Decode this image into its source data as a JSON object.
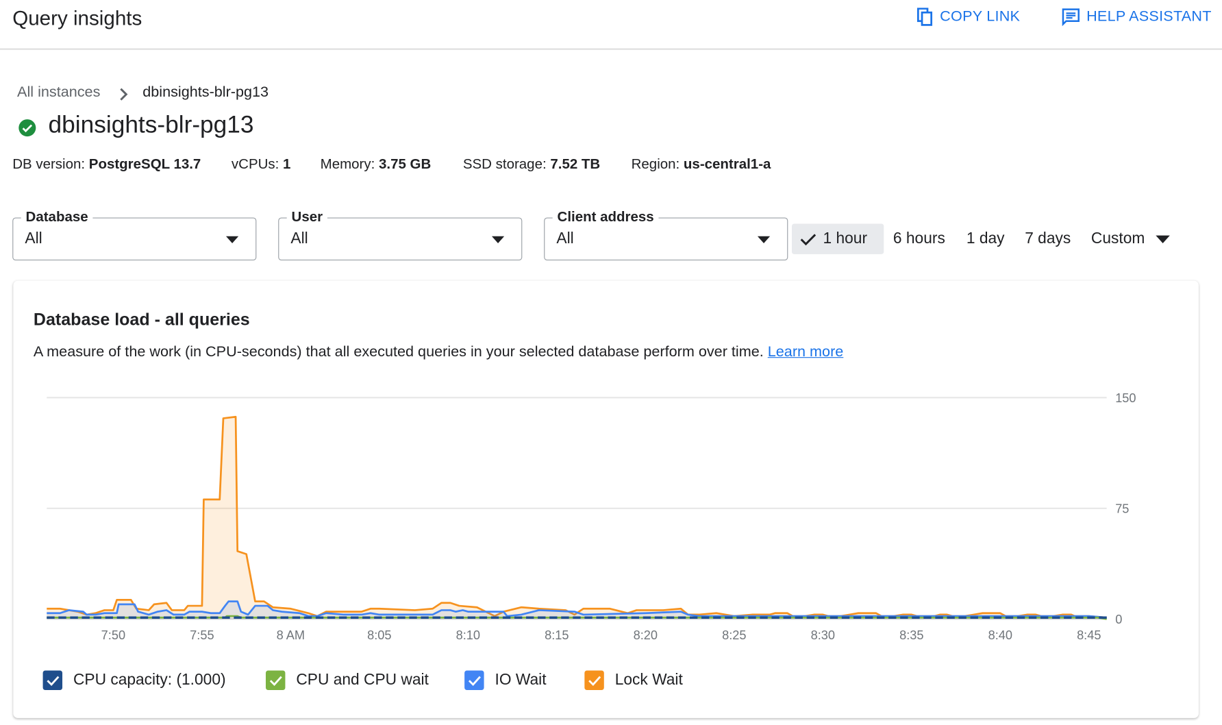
{
  "header": {
    "title": "Query insights",
    "copy_link": "COPY LINK",
    "help_assistant": "HELP ASSISTANT"
  },
  "breadcrumb": {
    "root": "All instances",
    "current": "dbinsights-blr-pg13"
  },
  "instance": {
    "name": "dbinsights-blr-pg13",
    "status": "healthy",
    "info": [
      {
        "label": "DB version:",
        "value": "PostgreSQL 13.7"
      },
      {
        "label": "vCPUs:",
        "value": "1"
      },
      {
        "label": "Memory:",
        "value": "3.75 GB"
      },
      {
        "label": "SSD storage:",
        "value": "7.52 TB"
      },
      {
        "label": "Region:",
        "value": "us-central1-a"
      }
    ]
  },
  "filters": [
    {
      "label": "Database",
      "value": "All"
    },
    {
      "label": "User",
      "value": "All"
    },
    {
      "label": "Client address",
      "value": "All"
    }
  ],
  "time_ranges": {
    "options": [
      "1 hour",
      "6 hours",
      "1 day",
      "7 days",
      "Custom"
    ],
    "selected": "1 hour"
  },
  "card": {
    "title": "Database load - all queries",
    "description": "A measure of the work (in CPU-seconds) that all executed queries in your selected database perform over time.",
    "learn_more": "Learn more"
  },
  "colors": {
    "accent": "#1a73e8",
    "cpu_capacity": "#1f4e8c",
    "cpu_wait": "#7cb342",
    "io_wait": "#4285f4",
    "lock_wait": "#f6921e",
    "success": "#1e8e3e"
  },
  "chart_data": {
    "type": "area",
    "title": "",
    "xlabel": "",
    "ylabel": "",
    "ylim": [
      0,
      150
    ],
    "yticks": [
      "150",
      "75",
      "0"
    ],
    "xlim": [
      "7:46:15",
      "8:46:00"
    ],
    "xticks": [
      "7:50",
      "7:55",
      "8 AM",
      "8:05",
      "8:10",
      "8:15",
      "8:20",
      "8:25",
      "8:30",
      "8:35",
      "8:40",
      "8:45"
    ],
    "grid": true,
    "legend_position": "bottom",
    "series": [
      {
        "name": "CPU capacity: (1.000)",
        "color": "#1f4e8c",
        "style": "dashed",
        "points": [
          [
            "7:46:15",
            1
          ],
          [
            "8:46:00",
            1
          ]
        ]
      },
      {
        "name": "CPU and CPU wait",
        "color": "#7cb342",
        "points": [
          [
            "7:46:15",
            1
          ],
          [
            "7:56:18",
            1
          ],
          [
            "7:56:24",
            2
          ],
          [
            "7:57:00",
            2
          ],
          [
            "7:57:12",
            1
          ],
          [
            "8:45:30",
            1
          ],
          [
            "8:46:00",
            0
          ]
        ]
      },
      {
        "name": "IO Wait",
        "color": "#4285f4",
        "points": [
          [
            "7:46:15",
            4
          ],
          [
            "7:47:00",
            4
          ],
          [
            "7:47:30",
            6
          ],
          [
            "7:48:18",
            5
          ],
          [
            "7:48:30",
            3
          ],
          [
            "7:49:00",
            3
          ],
          [
            "7:49:30",
            4
          ],
          [
            "7:50:12",
            4
          ],
          [
            "7:50:18",
            10
          ],
          [
            "7:51:12",
            10
          ],
          [
            "7:51:24",
            5
          ],
          [
            "7:52:00",
            3
          ],
          [
            "7:52:30",
            5
          ],
          [
            "7:53:00",
            6
          ],
          [
            "7:53:24",
            3
          ],
          [
            "7:54:00",
            3
          ],
          [
            "7:54:18",
            5
          ],
          [
            "7:55:00",
            5
          ],
          [
            "7:55:30",
            4
          ],
          [
            "7:56:00",
            4
          ],
          [
            "7:56:18",
            9
          ],
          [
            "7:56:30",
            12
          ],
          [
            "7:57:00",
            12
          ],
          [
            "7:57:12",
            5
          ],
          [
            "7:57:36",
            3
          ],
          [
            "7:58:00",
            9
          ],
          [
            "7:58:42",
            9
          ],
          [
            "7:59:00",
            6
          ],
          [
            "7:59:30",
            5
          ],
          [
            "8:00:30",
            4
          ],
          [
            "8:01:00",
            2
          ],
          [
            "8:01:30",
            2
          ],
          [
            "8:02:00",
            4
          ],
          [
            "8:03:00",
            3
          ],
          [
            "8:04:00",
            3
          ],
          [
            "8:04:30",
            4
          ],
          [
            "8:05:00",
            3
          ],
          [
            "8:08:00",
            3
          ],
          [
            "8:08:30",
            6
          ],
          [
            "8:09:00",
            6
          ],
          [
            "8:09:18",
            5
          ],
          [
            "8:09:42",
            6
          ],
          [
            "8:10:00",
            5
          ],
          [
            "8:12:00",
            5
          ],
          [
            "8:12:12",
            2
          ],
          [
            "8:13:00",
            3
          ],
          [
            "8:14:00",
            6
          ],
          [
            "8:16:00",
            5
          ],
          [
            "8:16:30",
            3
          ],
          [
            "8:20:00",
            4
          ],
          [
            "8:22:00",
            5
          ],
          [
            "8:22:24",
            3
          ],
          [
            "8:23:00",
            2
          ],
          [
            "8:45:00",
            2
          ],
          [
            "8:46:00",
            1
          ]
        ]
      },
      {
        "name": "Lock Wait",
        "color": "#f6921e",
        "points": [
          [
            "7:46:15",
            7
          ],
          [
            "7:47:00",
            7
          ],
          [
            "7:48:00",
            5
          ],
          [
            "7:48:30",
            3
          ],
          [
            "7:49:00",
            4
          ],
          [
            "7:49:30",
            6
          ],
          [
            "7:50:00",
            6
          ],
          [
            "7:50:12",
            13
          ],
          [
            "7:51:00",
            13
          ],
          [
            "7:51:18",
            7
          ],
          [
            "7:52:00",
            6
          ],
          [
            "7:52:18",
            10
          ],
          [
            "7:53:00",
            11
          ],
          [
            "7:53:18",
            6
          ],
          [
            "7:54:00",
            6
          ],
          [
            "7:54:12",
            9
          ],
          [
            "7:55:00",
            9
          ],
          [
            "7:55:06",
            81
          ],
          [
            "7:56:00",
            81
          ],
          [
            "7:56:12",
            136
          ],
          [
            "7:56:54",
            137
          ],
          [
            "7:57:00",
            46
          ],
          [
            "7:57:30",
            44
          ],
          [
            "7:58:00",
            12
          ],
          [
            "7:58:30",
            12
          ],
          [
            "7:59:00",
            8
          ],
          [
            "8:00:00",
            7
          ],
          [
            "8:01:00",
            4
          ],
          [
            "8:01:30",
            2
          ],
          [
            "8:02:00",
            5
          ],
          [
            "8:04:00",
            5
          ],
          [
            "8:04:30",
            7
          ],
          [
            "8:05:00",
            7
          ],
          [
            "8:07:00",
            6
          ],
          [
            "8:08:00",
            7
          ],
          [
            "8:08:30",
            11
          ],
          [
            "8:09:00",
            11
          ],
          [
            "8:09:30",
            9
          ],
          [
            "8:10:30",
            8
          ],
          [
            "8:11:30",
            2
          ],
          [
            "8:12:00",
            5
          ],
          [
            "8:13:00",
            8
          ],
          [
            "8:14:00",
            7
          ],
          [
            "8:15:30",
            6
          ],
          [
            "8:16:00",
            3
          ],
          [
            "8:16:30",
            7
          ],
          [
            "8:18:00",
            7
          ],
          [
            "8:19:00",
            4
          ],
          [
            "8:19:30",
            6
          ],
          [
            "8:21:00",
            6
          ],
          [
            "8:22:00",
            7
          ],
          [
            "8:22:24",
            3
          ],
          [
            "8:23:00",
            3
          ],
          [
            "8:24:00",
            4
          ],
          [
            "8:25:00",
            2
          ],
          [
            "8:26:00",
            3
          ],
          [
            "8:27:00",
            3
          ],
          [
            "8:27:18",
            4
          ],
          [
            "8:28:00",
            4
          ],
          [
            "8:28:18",
            2
          ],
          [
            "8:29:00",
            2
          ],
          [
            "8:29:30",
            3
          ],
          [
            "8:30:00",
            3
          ],
          [
            "8:30:18",
            2
          ],
          [
            "8:31:00",
            2
          ],
          [
            "8:31:30",
            3
          ],
          [
            "8:32:00",
            4
          ],
          [
            "8:33:00",
            4
          ],
          [
            "8:33:18",
            2
          ],
          [
            "8:34:00",
            2
          ],
          [
            "8:34:30",
            3
          ],
          [
            "8:35:00",
            3
          ],
          [
            "8:35:18",
            2
          ],
          [
            "8:36:18",
            2
          ],
          [
            "8:36:36",
            3
          ],
          [
            "8:37:00",
            3
          ],
          [
            "8:37:18",
            2
          ],
          [
            "8:38:00",
            2
          ],
          [
            "8:38:30",
            3
          ],
          [
            "8:39:00",
            4
          ],
          [
            "8:40:00",
            4
          ],
          [
            "8:40:18",
            2
          ],
          [
            "8:41:00",
            2
          ],
          [
            "8:41:30",
            3
          ],
          [
            "8:42:00",
            3
          ],
          [
            "8:42:18",
            2
          ],
          [
            "8:43:00",
            2
          ],
          [
            "8:43:30",
            3
          ],
          [
            "8:44:00",
            3
          ],
          [
            "8:44:12",
            2
          ],
          [
            "8:45:00",
            2
          ],
          [
            "8:46:00",
            1
          ]
        ]
      }
    ]
  }
}
